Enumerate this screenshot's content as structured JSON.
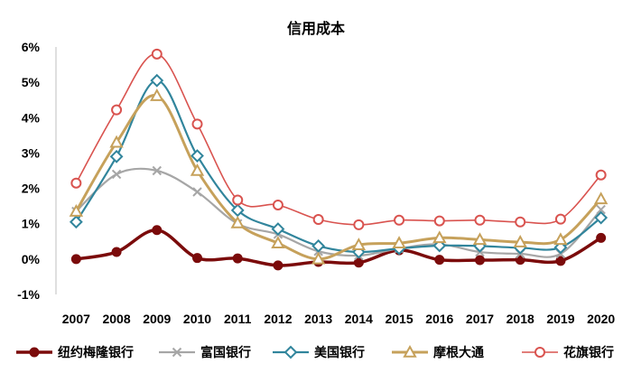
{
  "chart_data": {
    "type": "line",
    "title": "信用成本",
    "xlabel": "",
    "ylabel": "",
    "x": [
      "2007",
      "2008",
      "2009",
      "2010",
      "2011",
      "2012",
      "2013",
      "2014",
      "2015",
      "2016",
      "2017",
      "2018",
      "2019",
      "2020"
    ],
    "ylim": [
      -1,
      6
    ],
    "y_ticks": [
      {
        "value": 6,
        "label": "6%"
      },
      {
        "value": 5,
        "label": "5%"
      },
      {
        "value": 4,
        "label": "4%"
      },
      {
        "value": 3,
        "label": "3%"
      },
      {
        "value": 2,
        "label": "2%"
      },
      {
        "value": 1,
        "label": "1%"
      },
      {
        "value": 0,
        "label": "0%"
      },
      {
        "value": -1,
        "label": "-1%"
      }
    ],
    "grid": false,
    "legend_position": "bottom",
    "series": [
      {
        "name": "纽约梅隆银行",
        "color": "#7b0b0b",
        "marker": "circle-filled",
        "values": [
          0.0,
          0.2,
          0.82,
          0.03,
          0.02,
          -0.18,
          -0.08,
          -0.1,
          0.25,
          -0.02,
          -0.03,
          -0.02,
          -0.05,
          0.6
        ]
      },
      {
        "name": "富国银行",
        "color": "#a6a6a6",
        "marker": "x",
        "values": [
          1.35,
          2.4,
          2.5,
          1.9,
          1.0,
          0.7,
          0.22,
          0.1,
          0.3,
          0.42,
          0.2,
          0.15,
          0.15,
          1.4
        ]
      },
      {
        "name": "美国银行",
        "color": "#31859c",
        "marker": "diamond",
        "values": [
          1.05,
          2.9,
          5.05,
          2.92,
          1.38,
          0.85,
          0.37,
          0.2,
          0.3,
          0.38,
          0.37,
          0.32,
          0.33,
          1.17
        ]
      },
      {
        "name": "摩根大通",
        "color": "#c6a15b",
        "marker": "triangle",
        "values": [
          1.35,
          3.3,
          4.62,
          2.5,
          1.02,
          0.45,
          0.0,
          0.4,
          0.45,
          0.6,
          0.55,
          0.48,
          0.55,
          1.7
        ]
      },
      {
        "name": "花旗银行",
        "color": "#d9534f",
        "marker": "circle-open",
        "values": [
          2.15,
          4.22,
          5.8,
          3.82,
          1.67,
          1.53,
          1.12,
          0.97,
          1.1,
          1.08,
          1.1,
          1.05,
          1.13,
          2.38
        ]
      }
    ]
  }
}
